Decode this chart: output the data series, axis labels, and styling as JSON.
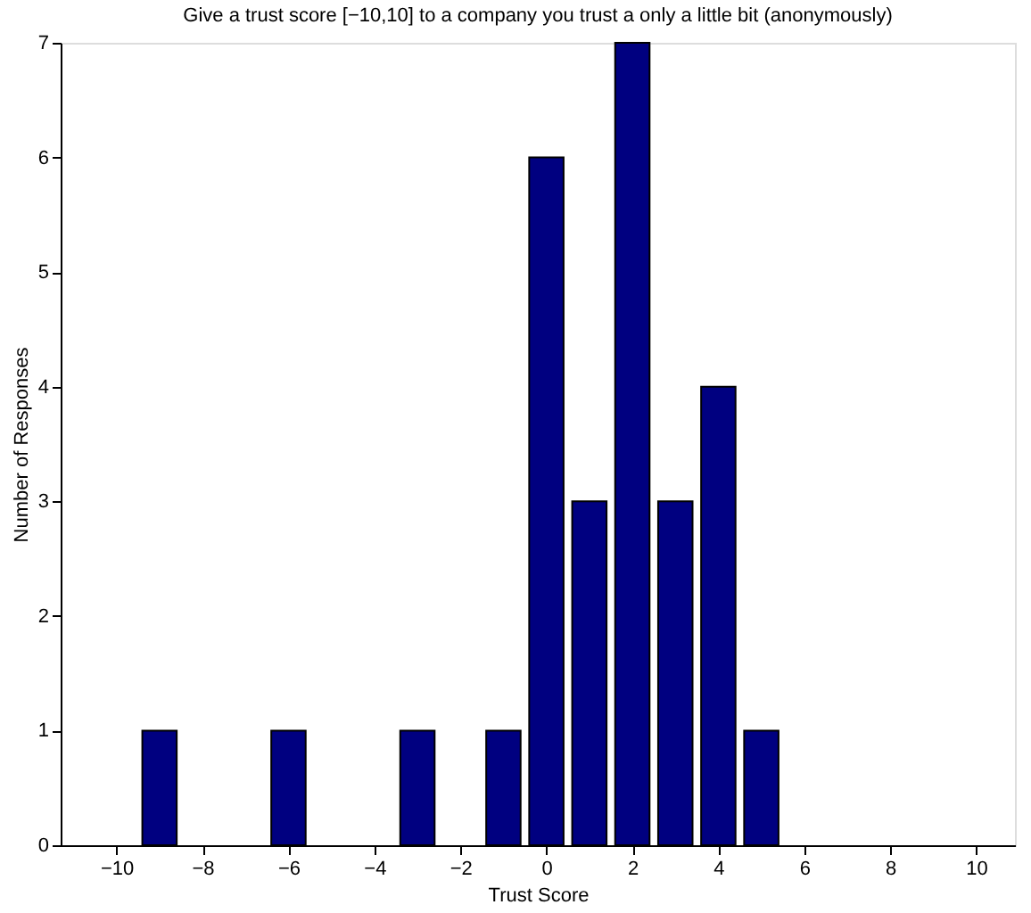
{
  "chart_data": {
    "type": "bar",
    "title": "Give a trust score [−10,10] to a company you trust a only a little bit  (anonymously)",
    "xlabel": "Trust Score",
    "ylabel": "Number of Responses",
    "x": [
      -9,
      -6,
      -3,
      -1,
      0,
      1,
      2,
      3,
      4,
      5
    ],
    "values": [
      1,
      1,
      1,
      1,
      6,
      3,
      7,
      3,
      4,
      1
    ],
    "color": "#000080",
    "xlim": [
      -11.3,
      10.9
    ],
    "xticks": [
      {
        "value": -10,
        "label": "−10"
      },
      {
        "value": -8,
        "label": "−8"
      },
      {
        "value": -6,
        "label": "−6"
      },
      {
        "value": -4,
        "label": "−4"
      },
      {
        "value": -2,
        "label": "−2"
      },
      0,
      2,
      4,
      6,
      8,
      10
    ],
    "ylim": [
      0,
      7
    ],
    "yticks": [
      0,
      1,
      2,
      3,
      4,
      5,
      6,
      7
    ],
    "grid": false
  }
}
